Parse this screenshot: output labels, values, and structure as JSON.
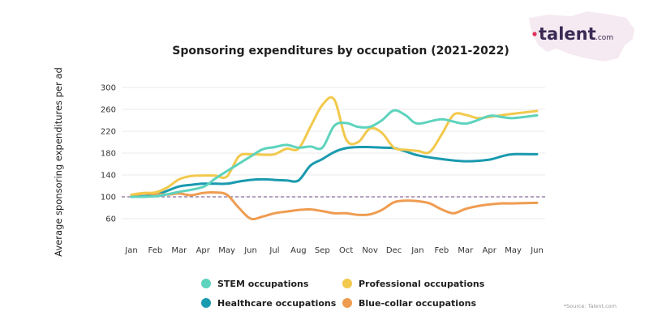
{
  "brand": {
    "logo_text": "talent",
    "logo_suffix": ".com",
    "accent": "#e0315a"
  },
  "source_note": "*Source: Talent.com",
  "chart_data": {
    "type": "line",
    "title": "Sponsoring expenditures by occupation (2021-2022)",
    "xlabel": "",
    "ylabel": "Average sponsoring expenditures per ad",
    "categories": [
      "Jan",
      "Feb",
      "Mar",
      "Apr",
      "May",
      "Jun",
      "Jul",
      "Aug",
      "Sep",
      "Oct",
      "Nov",
      "Dec",
      "Jan",
      "Feb",
      "Mar",
      "Apr",
      "May",
      "Jun"
    ],
    "yticks": [
      60,
      100,
      140,
      180,
      220,
      260,
      300
    ],
    "ylim": [
      40,
      305
    ],
    "grid": true,
    "reference_line": {
      "value": 100,
      "style": "dashed",
      "color": "#8a6a9a"
    },
    "legend_position": "bottom",
    "series": [
      {
        "name": "STEM occupations",
        "color": "#5ed3bd",
        "x": [
          0,
          1,
          2,
          3,
          3.5,
          4,
          5,
          5.5,
          6,
          6.5,
          7,
          7.5,
          8,
          8.5,
          9,
          9.5,
          10,
          10.5,
          11,
          11.5,
          12,
          13,
          14,
          15,
          15.5,
          16,
          17
        ],
        "values": [
          100,
          101,
          109,
          118,
          133,
          147,
          174,
          187,
          191,
          195,
          190,
          192,
          190,
          230,
          235,
          228,
          228,
          240,
          258,
          249,
          234,
          242,
          234,
          248,
          246,
          244,
          249
        ]
      },
      {
        "name": "Professional occupations",
        "color": "#f2c94c",
        "x": [
          0,
          0.5,
          1,
          1.5,
          2,
          2.5,
          3,
          3.5,
          4,
          4.5,
          5,
          5.5,
          6,
          6.5,
          7,
          7.5,
          8,
          8.5,
          9,
          9.5,
          10,
          10.5,
          11,
          11.5,
          12,
          12.5,
          13,
          13.5,
          14,
          14.5,
          15,
          16,
          17
        ],
        "values": [
          104,
          107,
          108,
          117,
          132,
          138,
          139,
          139,
          137,
          174,
          178,
          177,
          178,
          188,
          188,
          228,
          268,
          278,
          205,
          200,
          225,
          217,
          190,
          186,
          184,
          182,
          214,
          250,
          250,
          244,
          246,
          252,
          257
        ]
      },
      {
        "name": "Healthcare occupations",
        "color": "#1a9aaf",
        "x": [
          0,
          0.5,
          1,
          1.5,
          2,
          2.5,
          3,
          3.5,
          4,
          4.5,
          5,
          5.5,
          6,
          6.5,
          7,
          7.5,
          8,
          8.5,
          9,
          9.5,
          10,
          10.5,
          11,
          11.5,
          12,
          13,
          14,
          15,
          15.5,
          16,
          17
        ],
        "values": [
          100,
          101,
          103,
          111,
          119,
          122,
          124,
          124,
          124,
          128,
          131,
          132,
          131,
          130,
          130,
          157,
          169,
          182,
          189,
          191,
          191,
          190,
          189,
          183,
          176,
          169,
          165,
          168,
          174,
          178,
          178
        ]
      },
      {
        "name": "Blue-collar occupations",
        "color": "#ef9c51",
        "x": [
          0,
          0.5,
          1,
          1.5,
          2,
          2.5,
          3,
          3.5,
          4,
          4.5,
          5,
          5.5,
          6,
          6.5,
          7,
          7.5,
          8,
          8.5,
          9,
          9.5,
          10,
          10.5,
          11,
          11.5,
          12,
          12.5,
          13,
          13.5,
          14,
          14.5,
          15,
          15.5,
          16,
          17
        ],
        "values": [
          102,
          106,
          105,
          104,
          106,
          103,
          107,
          108,
          104,
          80,
          60,
          64,
          70,
          73,
          76,
          77,
          74,
          70,
          70,
          67,
          68,
          76,
          90,
          93,
          92,
          88,
          77,
          70,
          78,
          83,
          86,
          88,
          88,
          89
        ]
      }
    ]
  }
}
